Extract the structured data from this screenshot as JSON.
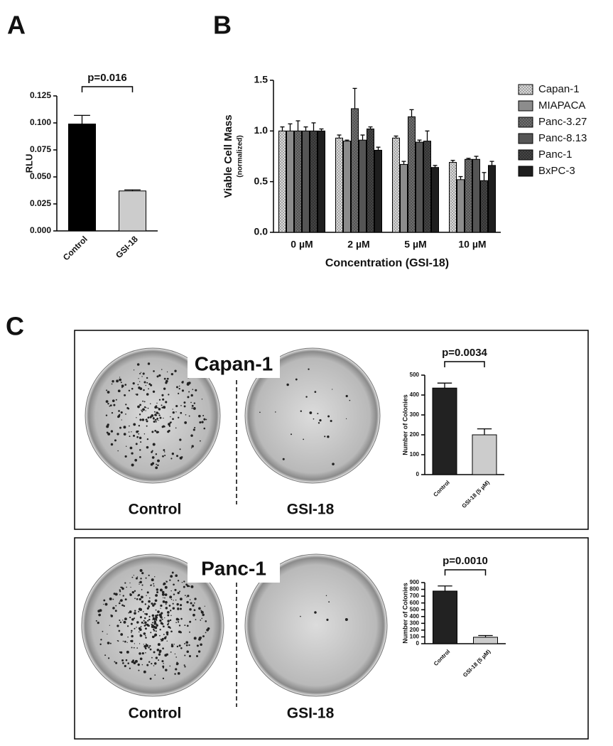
{
  "figure": {
    "panel_labels": [
      "A",
      "B",
      "C"
    ],
    "photo_rows": [
      {
        "title": "Capan-1",
        "left": "Control",
        "right": "GSI-18"
      },
      {
        "title": "Panc-1",
        "left": "Control",
        "right": "GSI-18"
      }
    ]
  },
  "chart_data": [
    {
      "type": "bar",
      "categories": [
        "Control",
        "GSI-18"
      ],
      "values": [
        0.099,
        0.037
      ],
      "errors": [
        0.008,
        0.001
      ],
      "colors": [
        "#000000",
        "#cccccc"
      ],
      "y_label": "RLU",
      "annotation": "p=0.016",
      "ylim": [
        0,
        0.125
      ],
      "yticks": [
        {
          "value": 0,
          "label": "0.000"
        },
        {
          "value": 0.025,
          "label": "0.025"
        },
        {
          "value": 0.05,
          "label": "0.050"
        },
        {
          "value": 0.075,
          "label": "0.075"
        },
        {
          "value": 0.1,
          "label": "0.100"
        },
        {
          "value": 0.125,
          "label": "0.125"
        }
      ]
    },
    {
      "type": "grouped_bar",
      "categories": [
        "0 µM",
        "2 µM",
        "5 µM",
        "10 µM"
      ],
      "y_label": "Viable Cell Mass",
      "y_sublabel": "(normalized)",
      "x_label": "Concentration (GSI-18)",
      "ylim": [
        0,
        1.5
      ],
      "yticks": [
        {
          "value": 0,
          "label": "0.0"
        },
        {
          "value": 0.5,
          "label": "0.5"
        },
        {
          "value": 1,
          "label": "1.0"
        },
        {
          "value": 1.5,
          "label": "1.5"
        }
      ],
      "series": [
        {
          "name": "Capan-1",
          "color": "#d9d9d9",
          "pattern": "dots",
          "values": [
            1.0,
            0.93,
            0.93,
            0.69
          ],
          "errors": [
            0.04,
            0.03,
            0.02,
            0.02
          ]
        },
        {
          "name": "MIAPACA",
          "color": "#8c8c8c",
          "values": [
            1.0,
            0.9,
            0.67,
            0.52
          ],
          "errors": [
            0.07,
            0.01,
            0.03,
            0.03
          ]
        },
        {
          "name": "Panc-3.27",
          "color": "#6e6e6e",
          "pattern": "dots",
          "values": [
            1.0,
            1.22,
            1.14,
            0.72
          ],
          "errors": [
            0.1,
            0.2,
            0.07,
            0.01
          ]
        },
        {
          "name": "Panc-8.13",
          "color": "#555555",
          "values": [
            1.0,
            0.91,
            0.89,
            0.72
          ],
          "errors": [
            0.04,
            0.05,
            0.02,
            0.03
          ]
        },
        {
          "name": "Panc-1",
          "color": "#444444",
          "pattern": "dots",
          "values": [
            1.0,
            1.02,
            0.9,
            0.51
          ],
          "errors": [
            0.08,
            0.02,
            0.1,
            0.08
          ]
        },
        {
          "name": "BxPC-3",
          "color": "#1e1e1e",
          "values": [
            1.0,
            0.81,
            0.64,
            0.66
          ],
          "errors": [
            0.02,
            0.03,
            0.02,
            0.04
          ]
        }
      ]
    },
    {
      "type": "bar",
      "categories": [
        "Control",
        "GSI-18 (5 µM)"
      ],
      "values": [
        435,
        200
      ],
      "errors": [
        25,
        30
      ],
      "colors": [
        "#222222",
        "#cccccc"
      ],
      "y_label": "Number of Colonies",
      "annotation": "p=0.0034",
      "ylim": [
        0,
        500
      ],
      "yticks": [
        0,
        100,
        200,
        300,
        400,
        500
      ]
    },
    {
      "type": "bar",
      "categories": [
        "Control",
        "GSI-18 (5 µM)"
      ],
      "values": [
        775,
        95
      ],
      "errors": [
        75,
        25
      ],
      "colors": [
        "#222222",
        "#cccccc"
      ],
      "y_label": "Number of Colonies",
      "annotation": "p=0.0010",
      "ylim": [
        0,
        900
      ],
      "yticks": [
        0,
        100,
        200,
        300,
        400,
        500,
        600,
        700,
        800,
        900
      ]
    }
  ]
}
